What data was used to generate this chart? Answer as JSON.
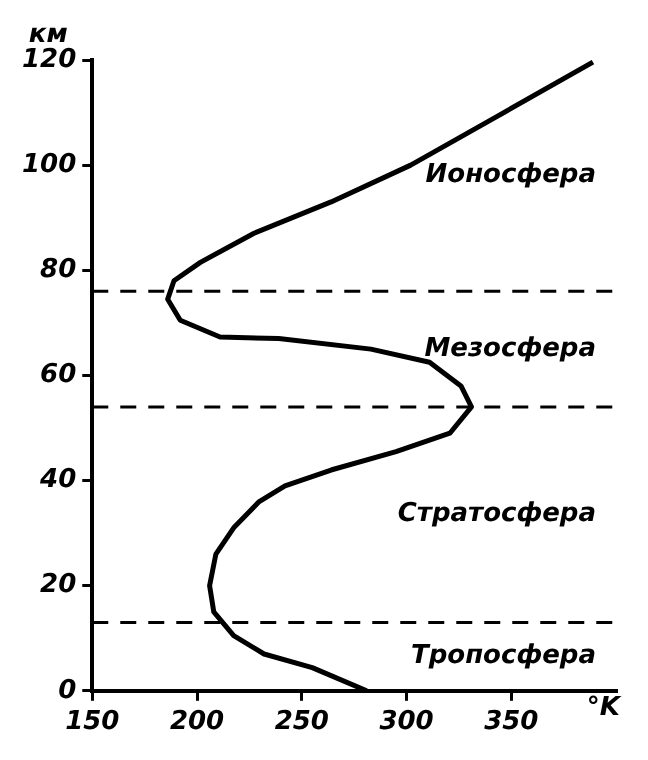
{
  "chart_data": {
    "type": "line",
    "xlabel": "°K",
    "ylabel": "км",
    "series": [
      {
        "color": "#000000",
        "x": [
          281,
          255,
          232,
          217.5,
          208,
          206,
          209,
          217.5,
          229.7,
          242,
          264,
          295,
          320.7,
          331,
          326,
          311,
          283,
          239,
          211,
          192,
          186,
          189,
          201.6,
          227,
          264,
          302,
          342,
          389
        ],
        "values": [
          0,
          4.4,
          7,
          10.5,
          15,
          20,
          26,
          31,
          36,
          39,
          42,
          45.5,
          49,
          54,
          58,
          62.5,
          65,
          67,
          67.3,
          70.5,
          74.5,
          78,
          81.5,
          87,
          93,
          100,
          109,
          119.6
        ]
      }
    ],
    "xlim": [
      150,
      400
    ],
    "xticks": [
      150,
      200,
      250,
      300,
      350
    ],
    "ylim": [
      0,
      120
    ],
    "yticks": [
      0,
      20,
      40,
      60,
      80,
      100,
      120
    ],
    "grid": false,
    "legend": false,
    "marker": "none",
    "line_style": "solid",
    "ref_lines": [
      {
        "axis": "y",
        "value": 13,
        "color": "#000000",
        "line_style": "dashed"
      },
      {
        "axis": "y",
        "value": 54,
        "color": "#000000",
        "line_style": "dashed"
      },
      {
        "axis": "y",
        "value": 76,
        "color": "#000000",
        "line_style": "dashed"
      }
    ],
    "annotations": [
      "Ионосфера",
      "Мезосфера",
      "Стратосфера",
      "Тропосфера"
    ]
  }
}
